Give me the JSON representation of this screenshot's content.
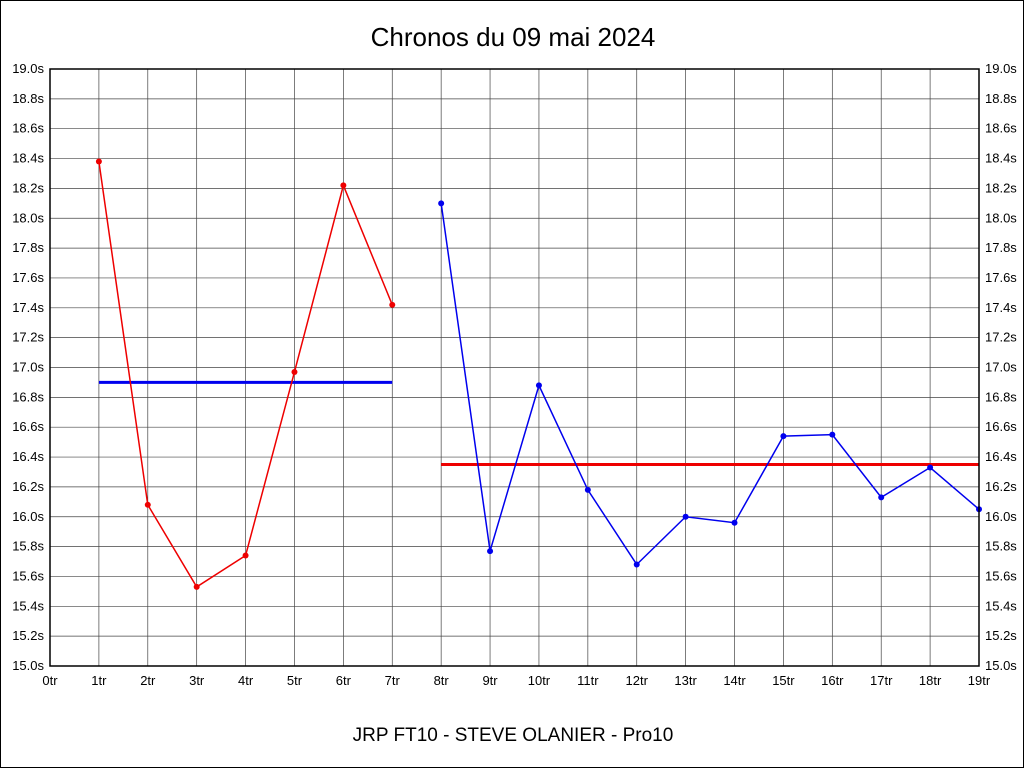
{
  "chart_data": {
    "type": "line",
    "title": "Chronos du 09 mai 2024",
    "caption": "JRP FT10 - STEVE OLANIER - Pro10",
    "xlabel": "",
    "ylabel": "",
    "x_ticks": [
      "0tr",
      "1tr",
      "2tr",
      "3tr",
      "4tr",
      "5tr",
      "6tr",
      "7tr",
      "8tr",
      "9tr",
      "10tr",
      "11tr",
      "12tr",
      "13tr",
      "14tr",
      "15tr",
      "16tr",
      "17tr",
      "18tr",
      "19tr"
    ],
    "x_range": [
      0,
      19
    ],
    "y_range": [
      15.0,
      19.0
    ],
    "y_tick_step": 0.2,
    "y_tick_suffix": "s",
    "grid": true,
    "legend_position": "none",
    "colors": {
      "series1": "#ee0000",
      "series2": "#0000ee",
      "grid": "#444444",
      "border": "#000000"
    },
    "series": [
      {
        "name": "laps-1-7",
        "color": "#ee0000",
        "x": [
          1,
          2,
          3,
          4,
          5,
          6,
          7
        ],
        "values": [
          18.38,
          16.08,
          15.53,
          15.74,
          16.97,
          18.22,
          17.42
        ]
      },
      {
        "name": "laps-8-19",
        "color": "#0000ee",
        "x": [
          8,
          9,
          10,
          11,
          12,
          13,
          14,
          15,
          16,
          17,
          18,
          19
        ],
        "values": [
          18.1,
          15.77,
          16.88,
          16.18,
          15.68,
          16.0,
          15.96,
          16.54,
          16.55,
          16.13,
          16.33,
          16.05
        ]
      }
    ],
    "average_lines": [
      {
        "name": "average-laps-1-7",
        "color": "#0000ee",
        "x_start": 1,
        "x_end": 7,
        "value": 16.9
      },
      {
        "name": "average-laps-8-19",
        "color": "#ee0000",
        "x_start": 8,
        "x_end": 19,
        "value": 16.35
      }
    ]
  }
}
